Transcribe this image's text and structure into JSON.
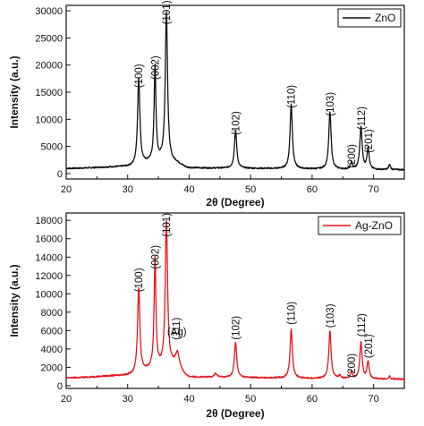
{
  "chart_data": [
    {
      "type": "line",
      "xlabel": "2θ (Degree)",
      "ylabel": "Intensity (a.u.)",
      "xlim": [
        20,
        75
      ],
      "ylim": [
        -1000,
        31000
      ],
      "xticks": [
        "20",
        "30",
        "40",
        "50",
        "60",
        "70"
      ],
      "yticks": [
        "0",
        "5000",
        "10000",
        "15000",
        "20000",
        "25000",
        "30000"
      ],
      "legend_position": "top-right",
      "series": [
        {
          "name": "ZnO",
          "color": "#111111",
          "baseline": 900,
          "points": [
            [
              20,
              950
            ],
            [
              30,
              1250
            ],
            [
              35.4,
              2400
            ],
            [
              37.5,
              2000
            ],
            [
              40,
              1000
            ],
            [
              75,
              700
            ]
          ],
          "peaks": [
            [
              31.8,
              16000,
              0.45
            ],
            [
              34.45,
              17400,
              0.35
            ],
            [
              36.3,
              27400,
              0.45
            ],
            [
              47.55,
              7000,
              0.45
            ],
            [
              56.6,
              12000,
              0.45
            ],
            [
              62.9,
              10600,
              0.45
            ],
            [
              66.4,
              1300,
              0.35
            ],
            [
              67.95,
              7900,
              0.45
            ],
            [
              69.1,
              4000,
              0.4
            ],
            [
              72.6,
              900,
              0.35
            ],
            [
              76.95,
              900,
              0.3
            ]
          ]
        }
      ],
      "annotations": [
        {
          "label": "(100)",
          "x": 31.8,
          "y": 18000
        },
        {
          "label": "(002)",
          "x": 34.45,
          "y": 19500
        },
        {
          "label": "(101)",
          "x": 36.3,
          "y": 29700
        },
        {
          "label": "(102)",
          "x": 47.55,
          "y": 9300
        },
        {
          "label": "(110)",
          "x": 56.6,
          "y": 14200
        },
        {
          "label": "(103)",
          "x": 62.9,
          "y": 12800
        },
        {
          "label": "(200)",
          "x": 66.4,
          "y": 3200
        },
        {
          "label": "(112)",
          "x": 68.0,
          "y": 10200
        },
        {
          "label": "(201)",
          "x": 69.2,
          "y": 6000
        }
      ]
    },
    {
      "type": "line",
      "xlabel": "2θ (Degree)",
      "ylabel": "Intensity (a.u.)",
      "xlim": [
        20,
        75
      ],
      "ylim": [
        -300,
        18800
      ],
      "xticks": [
        "20",
        "30",
        "40",
        "50",
        "60",
        "70"
      ],
      "yticks": [
        "0",
        "2000",
        "4000",
        "6000",
        "8000",
        "10000",
        "12000",
        "14000",
        "16000",
        "18000"
      ],
      "legend_position": "top-right",
      "series": [
        {
          "name": "Ag-ZnO",
          "color": "#e8141c",
          "baseline": 800,
          "points": [
            [
              20,
              850
            ],
            [
              30,
              1100
            ],
            [
              35.4,
              2000
            ],
            [
              37.5,
              2200
            ],
            [
              40,
              900
            ],
            [
              75,
              700
            ]
          ],
          "peaks": [
            [
              31.8,
              9300,
              0.45
            ],
            [
              34.45,
              11900,
              0.35
            ],
            [
              36.3,
              15800,
              0.45
            ],
            [
              38.1,
              1500,
              0.7
            ],
            [
              44.3,
              400,
              0.6
            ],
            [
              47.55,
              3800,
              0.45
            ],
            [
              56.6,
              5300,
              0.45
            ],
            [
              62.9,
              5200,
              0.45
            ],
            [
              64.5,
              300,
              0.5
            ],
            [
              66.4,
              800,
              0.35
            ],
            [
              67.95,
              4000,
              0.45
            ],
            [
              69.1,
              1900,
              0.4
            ],
            [
              72.6,
              300,
              0.35
            ]
          ]
        }
      ],
      "annotations": [
        {
          "label": "(100)",
          "x": 31.8,
          "y": 11500
        },
        {
          "label": "(002)",
          "x": 34.45,
          "y": 14000
        },
        {
          "label": "(101)",
          "x": 36.3,
          "y": 17500
        },
        {
          "label": "(111)",
          "x": 37.9,
          "y": 6200
        },
        {
          "label": "(Ag)",
          "x": 38.0,
          "y": 5500
        },
        {
          "label": "(102)",
          "x": 47.55,
          "y": 6300
        },
        {
          "label": "(110)",
          "x": 56.6,
          "y": 7900
        },
        {
          "label": "(103)",
          "x": 62.9,
          "y": 7600
        },
        {
          "label": "(200)",
          "x": 66.4,
          "y": 2200
        },
        {
          "label": "(112)",
          "x": 68.0,
          "y": 6600
        },
        {
          "label": "(201)",
          "x": 69.2,
          "y": 4300
        }
      ]
    }
  ]
}
